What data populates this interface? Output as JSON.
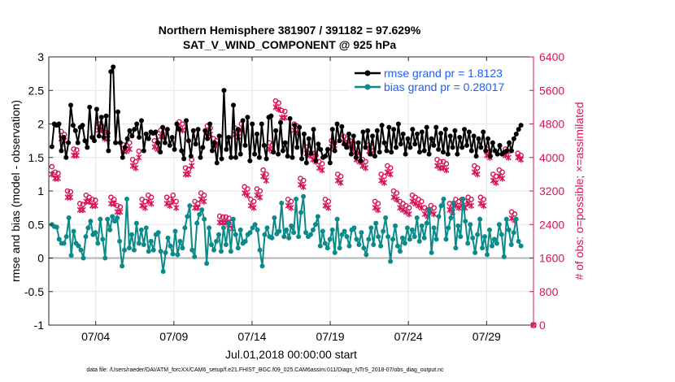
{
  "chart_data": {
    "type": "line",
    "title": "Northern Hemisphere 381907 / 391182 = 97.629%",
    "subtitle": "SAT_V_WIND_COMPONENT @ 925 hPa",
    "xlabel": "Jul.01,2018 00:00:00 start",
    "ylabel": "rmse and bias (model - observation)",
    "ylabel_right": "# of obs: o=possible; ×=assimilated",
    "xlim": [
      1,
      32
    ],
    "ylim": [
      -1,
      3
    ],
    "ylim_right": [
      0,
      6400
    ],
    "x_ticks": [
      4,
      9,
      14,
      19,
      24,
      29
    ],
    "x_tick_labels": [
      "07/04",
      "07/09",
      "07/14",
      "07/19",
      "07/24",
      "07/29"
    ],
    "y_ticks": [
      -1,
      -0.5,
      0,
      0.5,
      1,
      1.5,
      2,
      2.5,
      3
    ],
    "y_tick_labels": [
      "-1",
      "-0.5",
      "0",
      "0.5",
      "1",
      "1.5",
      "2",
      "2.5",
      "3"
    ],
    "y_right_ticks": [
      0,
      800,
      1600,
      2400,
      3200,
      4000,
      4800,
      5600,
      6400
    ],
    "y_right_tick_labels": [
      "0",
      "800",
      "1600",
      "2400",
      "3200",
      "4000",
      "4800",
      "5600",
      "6400"
    ],
    "grid": true,
    "legend_position": "top-right",
    "series": [
      {
        "name": "rmse grand pr = 1.8123",
        "axis": "left",
        "color": "#000000",
        "values": [
          1.66,
          2.0,
          1.98,
          2.0,
          1.6,
          1.8,
          1.5,
          1.72,
          2.28,
          1.98,
          1.9,
          1.72,
          1.95,
          1.98,
          1.75,
          1.65,
          2.25,
          1.8,
          1.75,
          2.22,
          1.82,
          2.1,
          1.8,
          2.12,
          1.6,
          2.78,
          2.85,
          1.72,
          2.18,
          1.72,
          1.5,
          1.65,
          1.78,
          1.9,
          1.82,
          1.92,
          2.0,
          1.8,
          2.05,
          1.6,
          1.85,
          1.78,
          1.88,
          1.86,
          1.88,
          1.72,
          1.58,
          1.95,
          1.72,
          1.92,
          1.68,
          1.8,
          1.62,
          2.0,
          1.92,
          1.6,
          1.48,
          2.05,
          1.75,
          1.52,
          1.9,
          1.7,
          1.92,
          1.5,
          1.65,
          1.9,
          1.78,
          2.0,
          1.6,
          1.72,
          1.42,
          1.82,
          1.48,
          2.5,
          1.62,
          1.8,
          1.5,
          2.28,
          1.5,
          1.92,
          1.55,
          2.05,
          1.68,
          2.1,
          1.45,
          2.0,
          1.55,
          1.85,
          1.5,
          2.0,
          1.68,
          1.48,
          2.1,
          2.12,
          1.58,
          1.9,
          1.55,
          2.02,
          1.6,
          1.72,
          1.52,
          2.08,
          1.5,
          1.98,
          1.65,
          1.95,
          1.48,
          1.85,
          1.42,
          1.78,
          1.56,
          1.92,
          1.45,
          1.7,
          1.62,
          1.5,
          1.52,
          1.62,
          1.42,
          1.92,
          1.6,
          2.0,
          1.75,
          1.96,
          1.7,
          1.65,
          1.85,
          1.55,
          1.82,
          1.5,
          1.72,
          1.45,
          1.88,
          1.65,
          1.9,
          1.55,
          1.82,
          1.52,
          1.9,
          1.58,
          1.98,
          1.72,
          1.6,
          1.95,
          1.58,
          1.92,
          1.65,
          2.0,
          1.7,
          1.85,
          1.55,
          1.78,
          1.65,
          1.92,
          1.7,
          1.85,
          1.58,
          1.88,
          1.6,
          1.95,
          1.55,
          1.78,
          1.68,
          1.95,
          1.62,
          1.86,
          1.58,
          1.92,
          1.55,
          1.82,
          1.65,
          1.9,
          1.55,
          1.8,
          1.65,
          1.92,
          1.68,
          1.88,
          1.6,
          1.82,
          1.52,
          1.78,
          1.65,
          1.88,
          1.6,
          1.78,
          1.52,
          1.72,
          1.6,
          1.55,
          1.68,
          1.55,
          1.58,
          1.6,
          1.72,
          1.6,
          1.78,
          1.85,
          1.92,
          1.98
        ]
      },
      {
        "name": "bias grand pr = 0.28017",
        "axis": "left",
        "color": "#0b8a8a",
        "values": [
          0.5,
          0.47,
          0.46,
          0.28,
          0.22,
          0.22,
          0.32,
          0.6,
          0.04,
          0.4,
          0.22,
          0.18,
          0.12,
          0.0,
          0.32,
          0.45,
          0.55,
          0.35,
          0.38,
          0.22,
          0.58,
          0.28,
          0.0,
          0.58,
          0.42,
          0.62,
          0.55,
          0.6,
          0.25,
          -0.12,
          0.12,
          0.88,
          0.15,
          0.35,
          0.12,
          0.52,
          0.22,
          0.42,
          0.2,
          0.45,
          0.1,
          0.25,
          0.12,
          0.35,
          0.38,
          0.1,
          -0.2,
          0.08,
          0.3,
          0.18,
          0.06,
          0.4,
          0.05,
          0.25,
          0.15,
          0.45,
          0.62,
          0.78,
          0.12,
          0.02,
          0.52,
          0.65,
          0.72,
          0.58,
          -0.08,
          0.45,
          0.2,
          0.12,
          0.25,
          0.35,
          0.1,
          0.45,
          0.2,
          0.52,
          0.1,
          0.58,
          0.35,
          0.15,
          0.42,
          0.22,
          0.25,
          0.35,
          0.38,
          0.45,
          0.5,
          0.42,
          0.12,
          -0.12,
          0.35,
          0.45,
          0.32,
          0.3,
          0.6,
          0.36,
          0.4,
          0.82,
          0.32,
          0.42,
          0.3,
          0.48,
          0.38,
          0.88,
          0.32,
          0.68,
          0.92,
          0.38,
          0.32,
          0.35,
          0.42,
          0.5,
          0.62,
          0.18,
          0.4,
          0.22,
          0.15,
          0.28,
          0.42,
          0.08,
          0.58,
          0.15,
          0.35,
          0.4,
          0.32,
          0.18,
          0.42,
          0.45,
          0.28,
          0.2,
          0.38,
          0.15,
          0.05,
          0.28,
          0.45,
          0.2,
          0.52,
          0.32,
          0.18,
          0.4,
          0.6,
          0.32,
          -0.05,
          0.28,
          0.48,
          0.18,
          0.1,
          0.3,
          0.22,
          0.45,
          0.28,
          0.42,
          0.32,
          0.6,
          0.25,
          0.48,
          0.3,
          0.52,
          0.72,
          0.08,
          0.45,
          0.28,
          0.62,
          0.78,
          0.88,
          0.28,
          0.45,
          0.6,
          0.82,
          0.15,
          0.48,
          0.32,
          0.88,
          0.55,
          0.22,
          0.5,
          0.3,
          0.08,
          0.35,
          0.58,
          0.15,
          0.32,
          0.05,
          0.42,
          0.18,
          0.28,
          0.22,
          0.5,
          0.35,
          0.02,
          0.58,
          0.42,
          0.2,
          0.38,
          0.58,
          0.25,
          0.18
        ]
      },
      {
        "name": "possible",
        "axis": "right",
        "color": "#d6145a",
        "marker": "o",
        "values": [
          3780,
          3650,
          3620,
          4620,
          4550,
          3200,
          3180,
          4200,
          4180,
          2900,
          2880,
          3100,
          3050,
          3000,
          2980,
          4800,
          4760,
          4600,
          4580,
          3050,
          3000,
          2850,
          2820,
          4300,
          4280,
          4350,
          3950,
          3900,
          4150,
          3000,
          2950,
          3100,
          3050,
          4400,
          4350,
          4650,
          4620,
          3050,
          3000,
          3100,
          2950,
          4850,
          4800,
          3750,
          3720,
          3950,
          2950,
          2900,
          3150,
          3100,
          4750,
          4700,
          4450,
          4400,
          2600,
          2580,
          2580,
          2550,
          2450,
          4700,
          4650,
          4800,
          3300,
          3250,
          3000,
          2950,
          3250,
          3200,
          3700,
          3600,
          4350,
          4300,
          5350,
          5300,
          5120,
          5100,
          3000,
          2950,
          4800,
          4750,
          3500,
          3450,
          4250,
          4200,
          4100,
          4050,
          3900,
          3850,
          3000,
          2950,
          4400,
          4350,
          3600,
          3550,
          4500,
          4450,
          4400,
          4350,
          4100,
          4050,
          3950,
          3900,
          4300,
          4250,
          2950,
          2900,
          3600,
          3550,
          3800,
          3750,
          3200,
          3150,
          2950,
          2900,
          2850,
          2800,
          3100,
          3050,
          3000,
          2950,
          2800,
          2750,
          2850,
          2800,
          3950,
          3900,
          3900,
          3850,
          2900,
          2850,
          3000,
          2950,
          3000,
          2950,
          3050,
          3000,
          3800,
          3750,
          3050,
          3000,
          4200,
          4150,
          3600,
          3550,
          3700,
          3650,
          4200,
          4150,
          2700,
          2650,
          4100,
          4050
        ]
      },
      {
        "name": "assimilated",
        "axis": "right",
        "color": "#d6145a",
        "marker": "x",
        "values": [
          3600,
          3500,
          3500,
          4450,
          4400,
          3050,
          3050,
          4050,
          4050,
          2750,
          2750,
          2950,
          2950,
          2850,
          2850,
          4650,
          4650,
          4450,
          4450,
          2900,
          2900,
          2700,
          2700,
          4150,
          4150,
          4200,
          3800,
          3750,
          4000,
          2850,
          2800,
          2950,
          2900,
          4250,
          4200,
          4500,
          4500,
          2900,
          2850,
          2950,
          2800,
          4700,
          4650,
          3600,
          3600,
          3800,
          2800,
          2800,
          3000,
          2950,
          4600,
          4550,
          4300,
          4300,
          2450,
          2450,
          2450,
          2400,
          2300,
          4550,
          4500,
          4650,
          3150,
          3100,
          2850,
          2800,
          3100,
          3050,
          3550,
          3450,
          4200,
          4150,
          5200,
          5150,
          4950,
          4950,
          2850,
          2800,
          4650,
          4600,
          3350,
          3300,
          4100,
          4050,
          3950,
          3900,
          3750,
          3700,
          2850,
          2800,
          4250,
          4200,
          3450,
          3400,
          4350,
          4300,
          4250,
          4200,
          3950,
          3900,
          3800,
          3750,
          4150,
          4100,
          2800,
          2750,
          3450,
          3400,
          3650,
          3600,
          3050,
          3000,
          2800,
          2750,
          2700,
          2650,
          2950,
          2900,
          2850,
          2800,
          2650,
          2600,
          2700,
          2650,
          3800,
          3750,
          3750,
          3700,
          2750,
          2700,
          2850,
          2800,
          2850,
          2800,
          2900,
          2850,
          3650,
          3600,
          2900,
          2850,
          4050,
          4000,
          3450,
          3400,
          3550,
          3500,
          4050,
          4000,
          2550,
          2500,
          4000,
          3950
        ]
      }
    ]
  },
  "footer": {
    "data_file": "data file: /Users/raeder/DAI/ATM_forcXX/CAM6_setup/f.e21.FHIST_BGC.f09_025.CAM6assim.011/Diags_NTrS_2018-07/obs_diag_output.nc"
  },
  "colors": {
    "rmse": "#000000",
    "bias": "#0b8a8a",
    "obs": "#d6145a",
    "legend_text": "#1f5ff0",
    "zero_line": "#b3b3b3",
    "grid": "#e6e6e6"
  }
}
